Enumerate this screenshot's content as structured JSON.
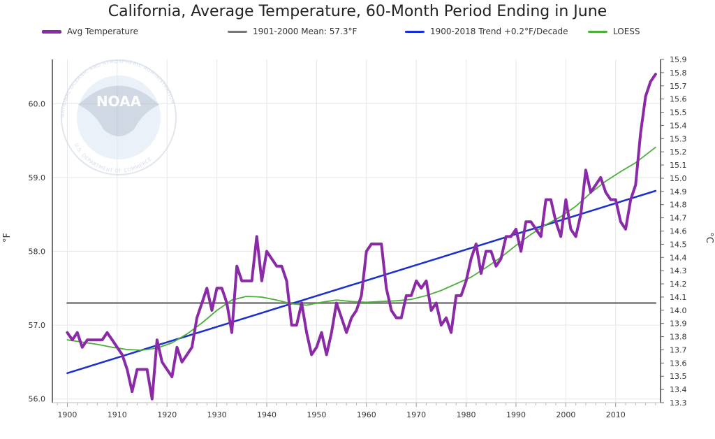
{
  "chart_data": {
    "type": "line",
    "title": "California, Average Temperature, 60-Month Period Ending in June",
    "ylabel_left": "°F",
    "ylabel_right": "°C",
    "xlim": [
      1897,
      2019
    ],
    "ylim_left": [
      55.95,
      60.6
    ],
    "ylim_right": [
      13.3,
      15.9
    ],
    "x_ticks": [
      "1900",
      "1910",
      "1920",
      "1930",
      "1940",
      "1950",
      "1960",
      "1970",
      "1980",
      "1990",
      "2000",
      "2010"
    ],
    "y_ticks_left": [
      "56.0",
      "57.0",
      "58.0",
      "59.0",
      "60.0"
    ],
    "y_ticks_right": [
      "13.3",
      "13.4",
      "13.5",
      "13.6",
      "13.7",
      "13.8",
      "13.9",
      "14.0",
      "14.1",
      "14.2",
      "14.3",
      "14.4",
      "14.5",
      "14.6",
      "14.7",
      "14.8",
      "14.9",
      "15.0",
      "15.1",
      "15.2",
      "15.3",
      "15.4",
      "15.5",
      "15.6",
      "15.7",
      "15.8",
      "15.9"
    ],
    "legend_position": "top",
    "grid": true,
    "series": [
      {
        "name": "Avg Temperature",
        "color": "#8a2aa6",
        "x": [
          1900,
          1901,
          1902,
          1903,
          1904,
          1905,
          1906,
          1907,
          1908,
          1909,
          1910,
          1911,
          1912,
          1913,
          1914,
          1915,
          1916,
          1917,
          1918,
          1919,
          1920,
          1921,
          1922,
          1923,
          1924,
          1925,
          1926,
          1927,
          1928,
          1929,
          1930,
          1931,
          1932,
          1933,
          1934,
          1935,
          1936,
          1937,
          1938,
          1939,
          1940,
          1941,
          1942,
          1943,
          1944,
          1945,
          1946,
          1947,
          1948,
          1949,
          1950,
          1951,
          1952,
          1953,
          1954,
          1955,
          1956,
          1957,
          1958,
          1959,
          1960,
          1961,
          1962,
          1963,
          1964,
          1965,
          1966,
          1967,
          1968,
          1969,
          1970,
          1971,
          1972,
          1973,
          1974,
          1975,
          1976,
          1977,
          1978,
          1979,
          1980,
          1981,
          1982,
          1983,
          1984,
          1985,
          1986,
          1987,
          1988,
          1989,
          1990,
          1991,
          1992,
          1993,
          1994,
          1995,
          1996,
          1997,
          1998,
          1999,
          2000,
          2001,
          2002,
          2003,
          2004,
          2005,
          2006,
          2007,
          2008,
          2009,
          2010,
          2011,
          2012,
          2013,
          2014,
          2015,
          2016,
          2017,
          2018
        ],
        "values": [
          56.9,
          56.8,
          56.9,
          56.7,
          56.8,
          56.8,
          56.8,
          56.8,
          56.9,
          56.8,
          56.7,
          56.6,
          56.4,
          56.1,
          56.4,
          56.4,
          56.4,
          56.0,
          56.8,
          56.5,
          56.4,
          56.3,
          56.7,
          56.5,
          56.6,
          56.7,
          57.1,
          57.3,
          57.5,
          57.2,
          57.5,
          57.5,
          57.3,
          56.9,
          57.8,
          57.6,
          57.6,
          57.6,
          58.2,
          57.6,
          58.0,
          57.9,
          57.8,
          57.8,
          57.6,
          57.0,
          57.0,
          57.3,
          56.9,
          56.6,
          56.7,
          56.9,
          56.6,
          56.9,
          57.3,
          57.1,
          56.9,
          57.1,
          57.2,
          57.4,
          58.0,
          58.1,
          58.1,
          58.1,
          57.5,
          57.2,
          57.1,
          57.1,
          57.4,
          57.4,
          57.6,
          57.5,
          57.6,
          57.2,
          57.3,
          57.0,
          57.1,
          56.9,
          57.4,
          57.4,
          57.6,
          57.9,
          58.1,
          57.7,
          58.0,
          58.0,
          57.8,
          57.9,
          58.2,
          58.2,
          58.3,
          58.0,
          58.4,
          58.4,
          58.3,
          58.2,
          58.7,
          58.7,
          58.4,
          58.2,
          58.7,
          58.3,
          58.2,
          58.5,
          59.1,
          58.8,
          58.9,
          59.0,
          58.8,
          58.7,
          58.7,
          58.4,
          58.3,
          58.7,
          58.9,
          59.6,
          60.1,
          60.3,
          60.4
        ]
      },
      {
        "name": "1901-2000 Mean: 57.3°F",
        "color": "#777777",
        "x": [
          1900,
          2018
        ],
        "values": [
          57.3,
          57.3
        ]
      },
      {
        "name": "1900-2018 Trend +0.2°F/Decade",
        "color": "#1a2fd0",
        "x": [
          1900,
          2018
        ],
        "values": [
          56.35,
          58.82
        ]
      },
      {
        "name": "LOESS",
        "color": "#4caf3a",
        "x": [
          1900,
          1903,
          1906,
          1909,
          1912,
          1915,
          1918,
          1921,
          1924,
          1927,
          1930,
          1933,
          1936,
          1939,
          1942,
          1945,
          1948,
          1951,
          1954,
          1957,
          1960,
          1963,
          1966,
          1969,
          1972,
          1975,
          1978,
          1981,
          1984,
          1987,
          1990,
          1993,
          1996,
          1999,
          2002,
          2005,
          2008,
          2011,
          2014,
          2018
        ],
        "values": [
          56.8,
          56.77,
          56.74,
          56.7,
          56.67,
          56.66,
          56.69,
          56.76,
          56.88,
          57.03,
          57.2,
          57.34,
          57.39,
          57.38,
          57.34,
          57.29,
          57.27,
          57.31,
          57.34,
          57.32,
          57.31,
          57.32,
          57.33,
          57.35,
          57.4,
          57.47,
          57.56,
          57.65,
          57.78,
          57.92,
          58.08,
          58.23,
          58.36,
          58.47,
          58.61,
          58.79,
          58.95,
          59.08,
          59.2,
          59.41
        ]
      }
    ]
  },
  "legend": {
    "items": [
      {
        "label": "Avg Temperature",
        "color": "#8a2aa6"
      },
      {
        "label": "1901-2000 Mean: 57.3°F",
        "color": "#777777"
      },
      {
        "label": "1900-2018 Trend +0.2°F/Decade",
        "color": "#1a2fd0"
      },
      {
        "label": "LOESS",
        "color": "#4caf3a"
      }
    ]
  },
  "logo": {
    "center_text": "NOAA",
    "ring_text": "NATIONAL OCEANIC AND ATMOSPHERIC ADMINISTRATION",
    "bottom_text": "U.S. DEPARTMENT OF COMMERCE"
  }
}
